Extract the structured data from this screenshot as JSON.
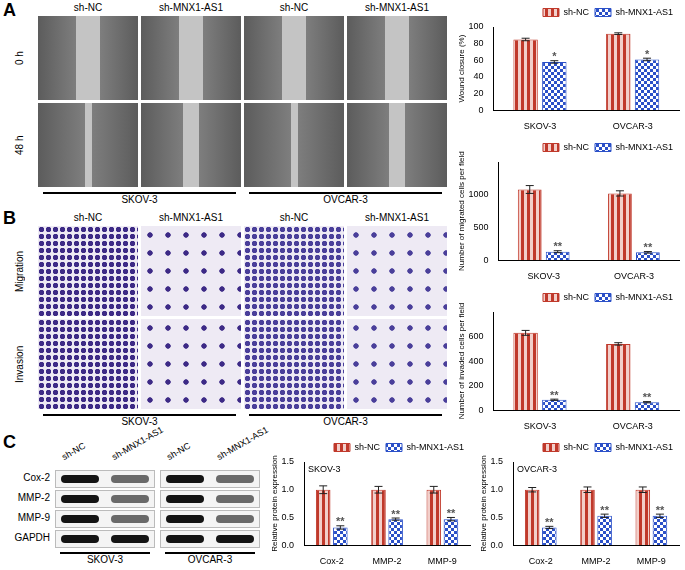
{
  "figure": {
    "wound_healing": {
      "letter": "A",
      "rows": [
        "0 h",
        "48 h"
      ],
      "columns": [
        "sh-NC",
        "sh-MNX1-AS1",
        "sh-NC",
        "sh-MNX1-AS1"
      ],
      "cell_lines": [
        "SKOV-3",
        "OVCAR-3"
      ]
    },
    "transwell": {
      "letter": "B",
      "rows": [
        "Migration",
        "Invasion"
      ],
      "columns": [
        "sh-NC",
        "sh-MNX1-AS1",
        "sh-NC",
        "sh-MNX1-AS1"
      ],
      "cell_lines": [
        "SKOV-3",
        "OVCAR-3"
      ]
    },
    "western_blot": {
      "letter": "C",
      "rows": [
        "Cox-2",
        "MMP-2",
        "MMP-9",
        "GAPDH"
      ],
      "columns": [
        "sh-NC",
        "sh-MNX1-AS1",
        "sh-NC",
        "sh-MNX1-AS1"
      ],
      "cell_lines": [
        "SKOV-3",
        "OVCAR-3"
      ]
    }
  },
  "chart_data": [
    {
      "type": "bar",
      "y_label": "Wound closure (%)",
      "categories": [
        "SKOV-3",
        "OVCAR-3"
      ],
      "series": [
        {
          "name": "sh-NC",
          "color": "#c0392b",
          "values": [
            85,
            92
          ],
          "errors": [
            1.5,
            1.0
          ]
        },
        {
          "name": "sh-MNX1-AS1",
          "color": "#2b50c8",
          "values": [
            58,
            61
          ],
          "errors": [
            1.5,
            1.5
          ],
          "significance": [
            "*",
            "*"
          ]
        }
      ],
      "ylim": [
        0,
        100
      ],
      "yticks": [
        0,
        20,
        40,
        60,
        80,
        100
      ],
      "grid": false,
      "legend": "top right"
    },
    {
      "type": "bar",
      "y_label": "Number of migrated cells per field",
      "categories": [
        "SKOV-3",
        "OVCAR-3"
      ],
      "series": [
        {
          "name": "sh-NC",
          "color": "#c0392b",
          "values": [
            1080,
            1020
          ],
          "errors": [
            60,
            40
          ]
        },
        {
          "name": "sh-MNX1-AS1",
          "color": "#2b50c8",
          "values": [
            130,
            120
          ],
          "errors": [
            15,
            12
          ],
          "significance": [
            "**",
            "**"
          ]
        }
      ],
      "ylim": [
        0,
        1500
      ],
      "yticks": [
        0,
        500,
        1000
      ],
      "grid": false,
      "legend": "top right"
    },
    {
      "type": "bar",
      "y_label": "Number of invaded cells per field",
      "categories": [
        "SKOV-3",
        "OVCAR-3"
      ],
      "series": [
        {
          "name": "sh-NC",
          "color": "#c0392b",
          "values": [
            630,
            540
          ],
          "errors": [
            20,
            10
          ]
        },
        {
          "name": "sh-MNX1-AS1",
          "color": "#2b50c8",
          "values": [
            85,
            65
          ],
          "errors": [
            5,
            5
          ],
          "significance": [
            "**",
            "**"
          ]
        }
      ],
      "ylim": [
        0,
        800
      ],
      "yticks": [
        0,
        200,
        400,
        600
      ],
      "grid": false,
      "legend": "top right"
    },
    {
      "type": "bar",
      "title": "SKOV-3",
      "y_label": "Relative protein expression",
      "categories": [
        "Cox-2",
        "MMP-2",
        "MMP-9"
      ],
      "series": [
        {
          "name": "sh-NC",
          "color": "#c0392b",
          "values": [
            1.0,
            1.0,
            1.0
          ],
          "errors": [
            0.07,
            0.06,
            0.06
          ]
        },
        {
          "name": "sh-MNX1-AS1",
          "color": "#2b50c8",
          "values": [
            0.32,
            0.47,
            0.47
          ],
          "errors": [
            0.03,
            0.02,
            0.03
          ],
          "significance": [
            "**",
            "**",
            "**"
          ]
        }
      ],
      "ylim": [
        0,
        1.5
      ],
      "yticks": [
        {
          "value": 0,
          "label": "0.0"
        },
        0.5,
        {
          "value": 1,
          "label": "1.0"
        },
        1.5
      ],
      "grid": false,
      "legend": "top right"
    },
    {
      "type": "bar",
      "title": "OVCAR-3",
      "y_label": "Relative protein expression",
      "categories": [
        "Cox-2",
        "MMP-2",
        "MMP-9"
      ],
      "series": [
        {
          "name": "sh-NC",
          "color": "#c0392b",
          "values": [
            1.0,
            1.0,
            1.0
          ],
          "errors": [
            0.04,
            0.05,
            0.05
          ]
        },
        {
          "name": "sh-MNX1-AS1",
          "color": "#2b50c8",
          "values": [
            0.32,
            0.53,
            0.53
          ],
          "errors": [
            0.02,
            0.03,
            0.03
          ],
          "significance": [
            "**",
            "**",
            "**"
          ]
        }
      ],
      "ylim": [
        0,
        1.5
      ],
      "yticks": [
        {
          "value": 0,
          "label": "0.0"
        },
        0.5,
        {
          "value": 1,
          "label": "1.0"
        },
        1.5
      ],
      "grid": false,
      "legend": "top right"
    }
  ]
}
